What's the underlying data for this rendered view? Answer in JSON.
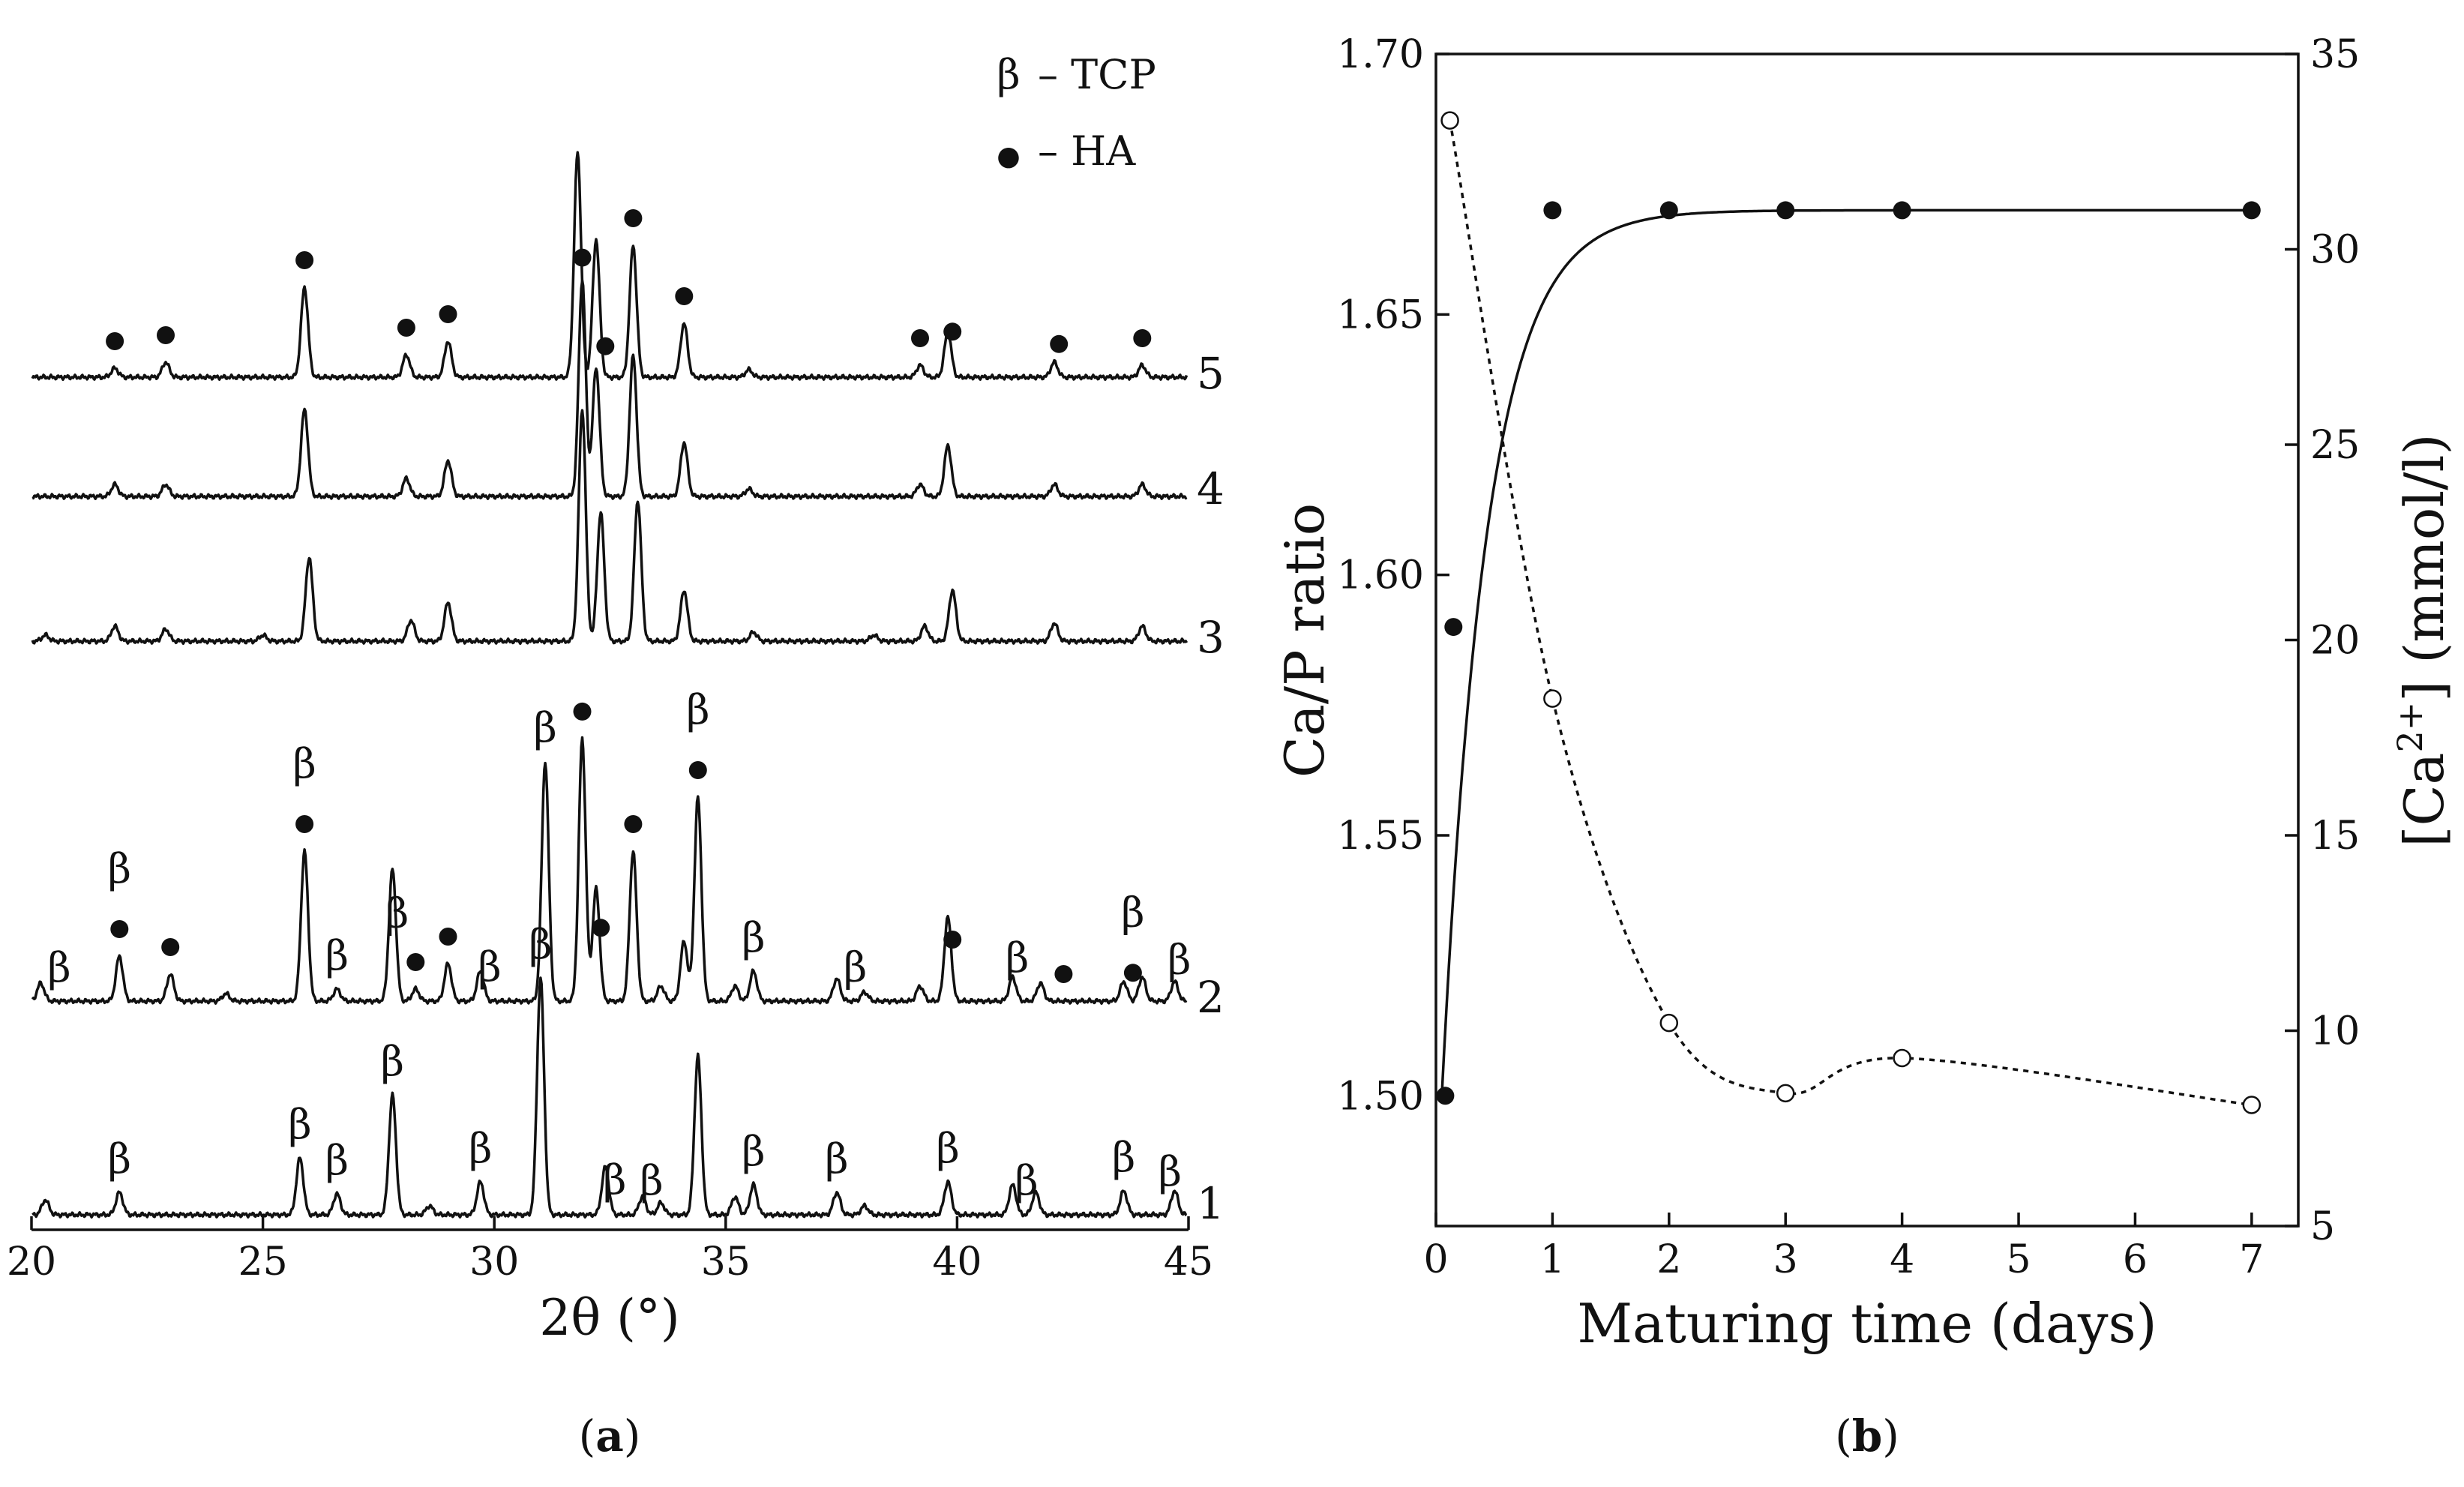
{
  "figure": {
    "panel_a_caption_open": "(",
    "panel_a_caption_letter": "a",
    "panel_a_caption_close": ")",
    "panel_b_caption_open": "(",
    "panel_b_caption_letter": "b",
    "panel_b_caption_close": ")"
  },
  "colors": {
    "ink": "#111111",
    "background": "#ffffff"
  },
  "chart_data": [
    {
      "type": "line",
      "panel": "a",
      "xlabel": "2θ (°)",
      "ylabel": "",
      "xlim": [
        20,
        45
      ],
      "x_ticks": [
        20,
        25,
        30,
        35,
        40,
        45
      ],
      "legend": [
        {
          "marker": "β",
          "text": "– TCP"
        },
        {
          "marker": "●",
          "text": "– HA"
        }
      ],
      "legend_position": "top-right",
      "series": [
        {
          "name": "1",
          "description": "β-TCP pattern",
          "peaks": [
            {
              "x": 20.3,
              "h": 0.1
            },
            {
              "x": 21.9,
              "h": 0.15
            },
            {
              "x": 25.8,
              "h": 0.38
            },
            {
              "x": 26.6,
              "h": 0.14
            },
            {
              "x": 27.8,
              "h": 0.8
            },
            {
              "x": 28.6,
              "h": 0.06
            },
            {
              "x": 29.7,
              "h": 0.22
            },
            {
              "x": 31.0,
              "h": 1.58
            },
            {
              "x": 32.4,
              "h": 0.32
            },
            {
              "x": 33.2,
              "h": 0.12
            },
            {
              "x": 33.6,
              "h": 0.08
            },
            {
              "x": 34.4,
              "h": 1.06
            },
            {
              "x": 35.2,
              "h": 0.12
            },
            {
              "x": 35.6,
              "h": 0.2
            },
            {
              "x": 37.4,
              "h": 0.15
            },
            {
              "x": 38.0,
              "h": 0.06
            },
            {
              "x": 39.8,
              "h": 0.22
            },
            {
              "x": 41.2,
              "h": 0.2
            },
            {
              "x": 41.7,
              "h": 0.15
            },
            {
              "x": 43.6,
              "h": 0.16
            },
            {
              "x": 44.7,
              "h": 0.16
            }
          ],
          "markers": [
            {
              "x": 21.9,
              "symbol": "β"
            },
            {
              "x": 25.8,
              "symbol": "β"
            },
            {
              "x": 26.6,
              "symbol": "β"
            },
            {
              "x": 27.8,
              "symbol": "β"
            },
            {
              "x": 29.7,
              "symbol": "β"
            },
            {
              "x": 31.0,
              "symbol": "β"
            },
            {
              "x": 32.6,
              "symbol": "β"
            },
            {
              "x": 33.4,
              "symbol": "β"
            },
            {
              "x": 35.6,
              "symbol": "β"
            },
            {
              "x": 37.4,
              "symbol": "β"
            },
            {
              "x": 39.8,
              "symbol": "β"
            },
            {
              "x": 41.5,
              "symbol": "β"
            },
            {
              "x": 43.6,
              "symbol": "β"
            },
            {
              "x": 44.6,
              "symbol": "β"
            }
          ]
        },
        {
          "name": "2",
          "description": "biphasic β-TCP + HA pattern",
          "peaks": [
            {
              "x": 20.2,
              "h": 0.12
            },
            {
              "x": 21.9,
              "h": 0.3
            },
            {
              "x": 23.0,
              "h": 0.18
            },
            {
              "x": 24.2,
              "h": 0.05
            },
            {
              "x": 25.9,
              "h": 1.0
            },
            {
              "x": 26.6,
              "h": 0.08
            },
            {
              "x": 27.8,
              "h": 0.88
            },
            {
              "x": 28.3,
              "h": 0.08
            },
            {
              "x": 29.0,
              "h": 0.25
            },
            {
              "x": 29.7,
              "h": 0.2
            },
            {
              "x": 31.1,
              "h": 1.6
            },
            {
              "x": 31.9,
              "h": 1.75
            },
            {
              "x": 32.2,
              "h": 0.75
            },
            {
              "x": 33.0,
              "h": 1.0
            },
            {
              "x": 33.6,
              "h": 0.1
            },
            {
              "x": 34.1,
              "h": 0.4
            },
            {
              "x": 34.4,
              "h": 1.36
            },
            {
              "x": 35.2,
              "h": 0.1
            },
            {
              "x": 35.6,
              "h": 0.2
            },
            {
              "x": 37.4,
              "h": 0.15
            },
            {
              "x": 38.0,
              "h": 0.06
            },
            {
              "x": 39.2,
              "h": 0.1
            },
            {
              "x": 39.8,
              "h": 0.56
            },
            {
              "x": 41.2,
              "h": 0.16
            },
            {
              "x": 41.8,
              "h": 0.12
            },
            {
              "x": 43.6,
              "h": 0.13
            },
            {
              "x": 44.0,
              "h": 0.16
            },
            {
              "x": 44.7,
              "h": 0.13
            }
          ],
          "markers": [
            {
              "x": 20.6,
              "symbol": "β"
            },
            {
              "x": 21.9,
              "symbol": "●"
            },
            {
              "x": 21.9,
              "symbol": "β",
              "stack": 2
            },
            {
              "x": 23.0,
              "symbol": "●"
            },
            {
              "x": 25.9,
              "symbol": "●"
            },
            {
              "x": 25.9,
              "symbol": "β",
              "stack": 2
            },
            {
              "x": 26.6,
              "symbol": "β"
            },
            {
              "x": 27.9,
              "symbol": "β"
            },
            {
              "x": 28.3,
              "symbol": "●"
            },
            {
              "x": 29.0,
              "symbol": "●"
            },
            {
              "x": 29.9,
              "symbol": "β"
            },
            {
              "x": 31.1,
              "symbol": "β"
            },
            {
              "x": 31.9,
              "symbol": "●"
            },
            {
              "x": 32.3,
              "symbol": "●"
            },
            {
              "x": 33.0,
              "symbol": "●"
            },
            {
              "x": 34.4,
              "symbol": "●"
            },
            {
              "x": 34.4,
              "symbol": "β",
              "stack": 2
            },
            {
              "x": 35.6,
              "symbol": "β"
            },
            {
              "x": 37.8,
              "symbol": "β"
            },
            {
              "x": 39.9,
              "symbol": "●"
            },
            {
              "x": 41.3,
              "symbol": "β"
            },
            {
              "x": 42.3,
              "symbol": "●"
            },
            {
              "x": 43.8,
              "symbol": "●"
            },
            {
              "x": 43.8,
              "symbol": "β",
              "stack": 2
            },
            {
              "x": 44.8,
              "symbol": "β"
            }
          ]
        },
        {
          "name": "3",
          "description": "HA pattern",
          "peaks": [
            {
              "x": 20.3,
              "h": 0.04
            },
            {
              "x": 21.8,
              "h": 0.1
            },
            {
              "x": 22.9,
              "h": 0.08
            },
            {
              "x": 25.0,
              "h": 0.04
            },
            {
              "x": 26.0,
              "h": 0.56
            },
            {
              "x": 28.2,
              "h": 0.14
            },
            {
              "x": 29.0,
              "h": 0.26
            },
            {
              "x": 31.9,
              "h": 1.55
            },
            {
              "x": 32.3,
              "h": 0.86
            },
            {
              "x": 33.1,
              "h": 0.94
            },
            {
              "x": 34.1,
              "h": 0.34
            },
            {
              "x": 35.6,
              "h": 0.06
            },
            {
              "x": 38.2,
              "h": 0.04
            },
            {
              "x": 39.3,
              "h": 0.1
            },
            {
              "x": 39.9,
              "h": 0.34
            },
            {
              "x": 42.1,
              "h": 0.12
            },
            {
              "x": 44.0,
              "h": 0.1
            }
          ],
          "markers": []
        },
        {
          "name": "4",
          "description": "HA pattern",
          "peaks": [
            {
              "x": 21.8,
              "h": 0.08
            },
            {
              "x": 22.9,
              "h": 0.08
            },
            {
              "x": 25.9,
              "h": 0.58
            },
            {
              "x": 28.1,
              "h": 0.12
            },
            {
              "x": 29.0,
              "h": 0.24
            },
            {
              "x": 31.9,
              "h": 1.45
            },
            {
              "x": 32.2,
              "h": 0.86
            },
            {
              "x": 33.0,
              "h": 0.94
            },
            {
              "x": 34.1,
              "h": 0.36
            },
            {
              "x": 35.5,
              "h": 0.05
            },
            {
              "x": 39.2,
              "h": 0.08
            },
            {
              "x": 39.8,
              "h": 0.34
            },
            {
              "x": 42.1,
              "h": 0.08
            },
            {
              "x": 44.0,
              "h": 0.08
            }
          ],
          "markers": []
        },
        {
          "name": "5",
          "description": "HA pattern",
          "peaks": [
            {
              "x": 21.8,
              "h": 0.06
            },
            {
              "x": 22.9,
              "h": 0.1
            },
            {
              "x": 25.9,
              "h": 0.6
            },
            {
              "x": 28.1,
              "h": 0.15
            },
            {
              "x": 29.0,
              "h": 0.24
            },
            {
              "x": 31.8,
              "h": 1.5
            },
            {
              "x": 32.2,
              "h": 0.92
            },
            {
              "x": 33.0,
              "h": 0.88
            },
            {
              "x": 34.1,
              "h": 0.36
            },
            {
              "x": 35.5,
              "h": 0.05
            },
            {
              "x": 39.2,
              "h": 0.08
            },
            {
              "x": 39.8,
              "h": 0.3
            },
            {
              "x": 42.1,
              "h": 0.1
            },
            {
              "x": 44.0,
              "h": 0.08
            }
          ],
          "markers": [
            {
              "x": 21.8,
              "symbol": "●"
            },
            {
              "x": 22.9,
              "symbol": "●"
            },
            {
              "x": 25.9,
              "symbol": "●"
            },
            {
              "x": 28.1,
              "symbol": "●"
            },
            {
              "x": 29.0,
              "symbol": "●"
            },
            {
              "x": 31.9,
              "symbol": "●"
            },
            {
              "x": 32.4,
              "symbol": "●"
            },
            {
              "x": 33.0,
              "symbol": "●"
            },
            {
              "x": 34.1,
              "symbol": "●"
            },
            {
              "x": 39.2,
              "symbol": "●"
            },
            {
              "x": 39.9,
              "symbol": "●"
            },
            {
              "x": 42.2,
              "symbol": "●"
            },
            {
              "x": 44.0,
              "symbol": "●"
            }
          ]
        }
      ]
    },
    {
      "type": "scatter",
      "panel": "b",
      "xlabel": "Maturing time (days)",
      "ylabel": "Ca/P ratio",
      "y2label": "[Ca2+] (mmol/l)",
      "xlim": [
        0,
        7.4
      ],
      "ylim": [
        1.475,
        1.7
      ],
      "y2lim": [
        5,
        35
      ],
      "x_ticks": [
        0,
        1,
        2,
        3,
        4,
        5,
        6,
        7
      ],
      "y_ticks": [
        "1.50",
        "1.55",
        "1.60",
        "1.65",
        "1.70"
      ],
      "y2_ticks": [
        5,
        10,
        15,
        20,
        25,
        30,
        35
      ],
      "series": [
        {
          "name": "Ca/P ratio",
          "axis": "left",
          "marker": "filled-circle",
          "line": "solid",
          "points": [
            [
              0.08,
              1.5
            ],
            [
              0.15,
              1.59
            ],
            [
              1,
              1.67
            ],
            [
              2,
              1.67
            ],
            [
              3,
              1.67
            ],
            [
              4,
              1.67
            ],
            [
              7,
              1.67
            ]
          ]
        },
        {
          "name": "[Ca2+]",
          "axis": "right",
          "marker": "open-circle",
          "line": "dashed",
          "points": [
            [
              0.12,
              33.3
            ],
            [
              1,
              18.5
            ],
            [
              2,
              10.2
            ],
            [
              3,
              8.4
            ],
            [
              4,
              9.3
            ],
            [
              7,
              8.1
            ]
          ]
        }
      ]
    }
  ]
}
